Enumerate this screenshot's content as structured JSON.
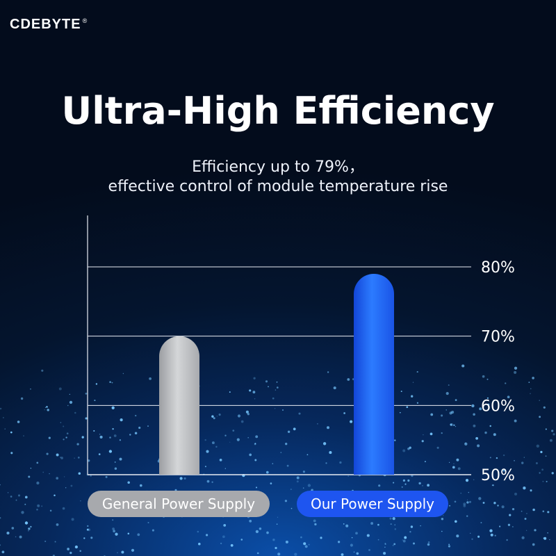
{
  "brand": {
    "name": "CDEBYTE",
    "mark": "®"
  },
  "heading": {
    "title": "Ultra-High Efficiency",
    "subtitle_line1": "Efficiency up to 79%，",
    "subtitle_line2": "effective control of module temperature rise"
  },
  "colors": {
    "general_bar": "#b9bbbe",
    "our_bar": "#1e5ef5",
    "general_label_bg": "#a7a9ad",
    "our_label_bg": "#1e55f0",
    "background": "#04152f"
  },
  "chart_data": {
    "type": "bar",
    "categories": [
      "General Power Supply",
      "Our Power Supply"
    ],
    "values": [
      70,
      79
    ],
    "unit": "%",
    "ylim": [
      50,
      80
    ],
    "yticks": [
      50,
      60,
      70,
      80
    ],
    "ytick_labels": [
      "50%",
      "60%",
      "70%",
      "80%"
    ],
    "grid": true,
    "axis_side": "right"
  }
}
